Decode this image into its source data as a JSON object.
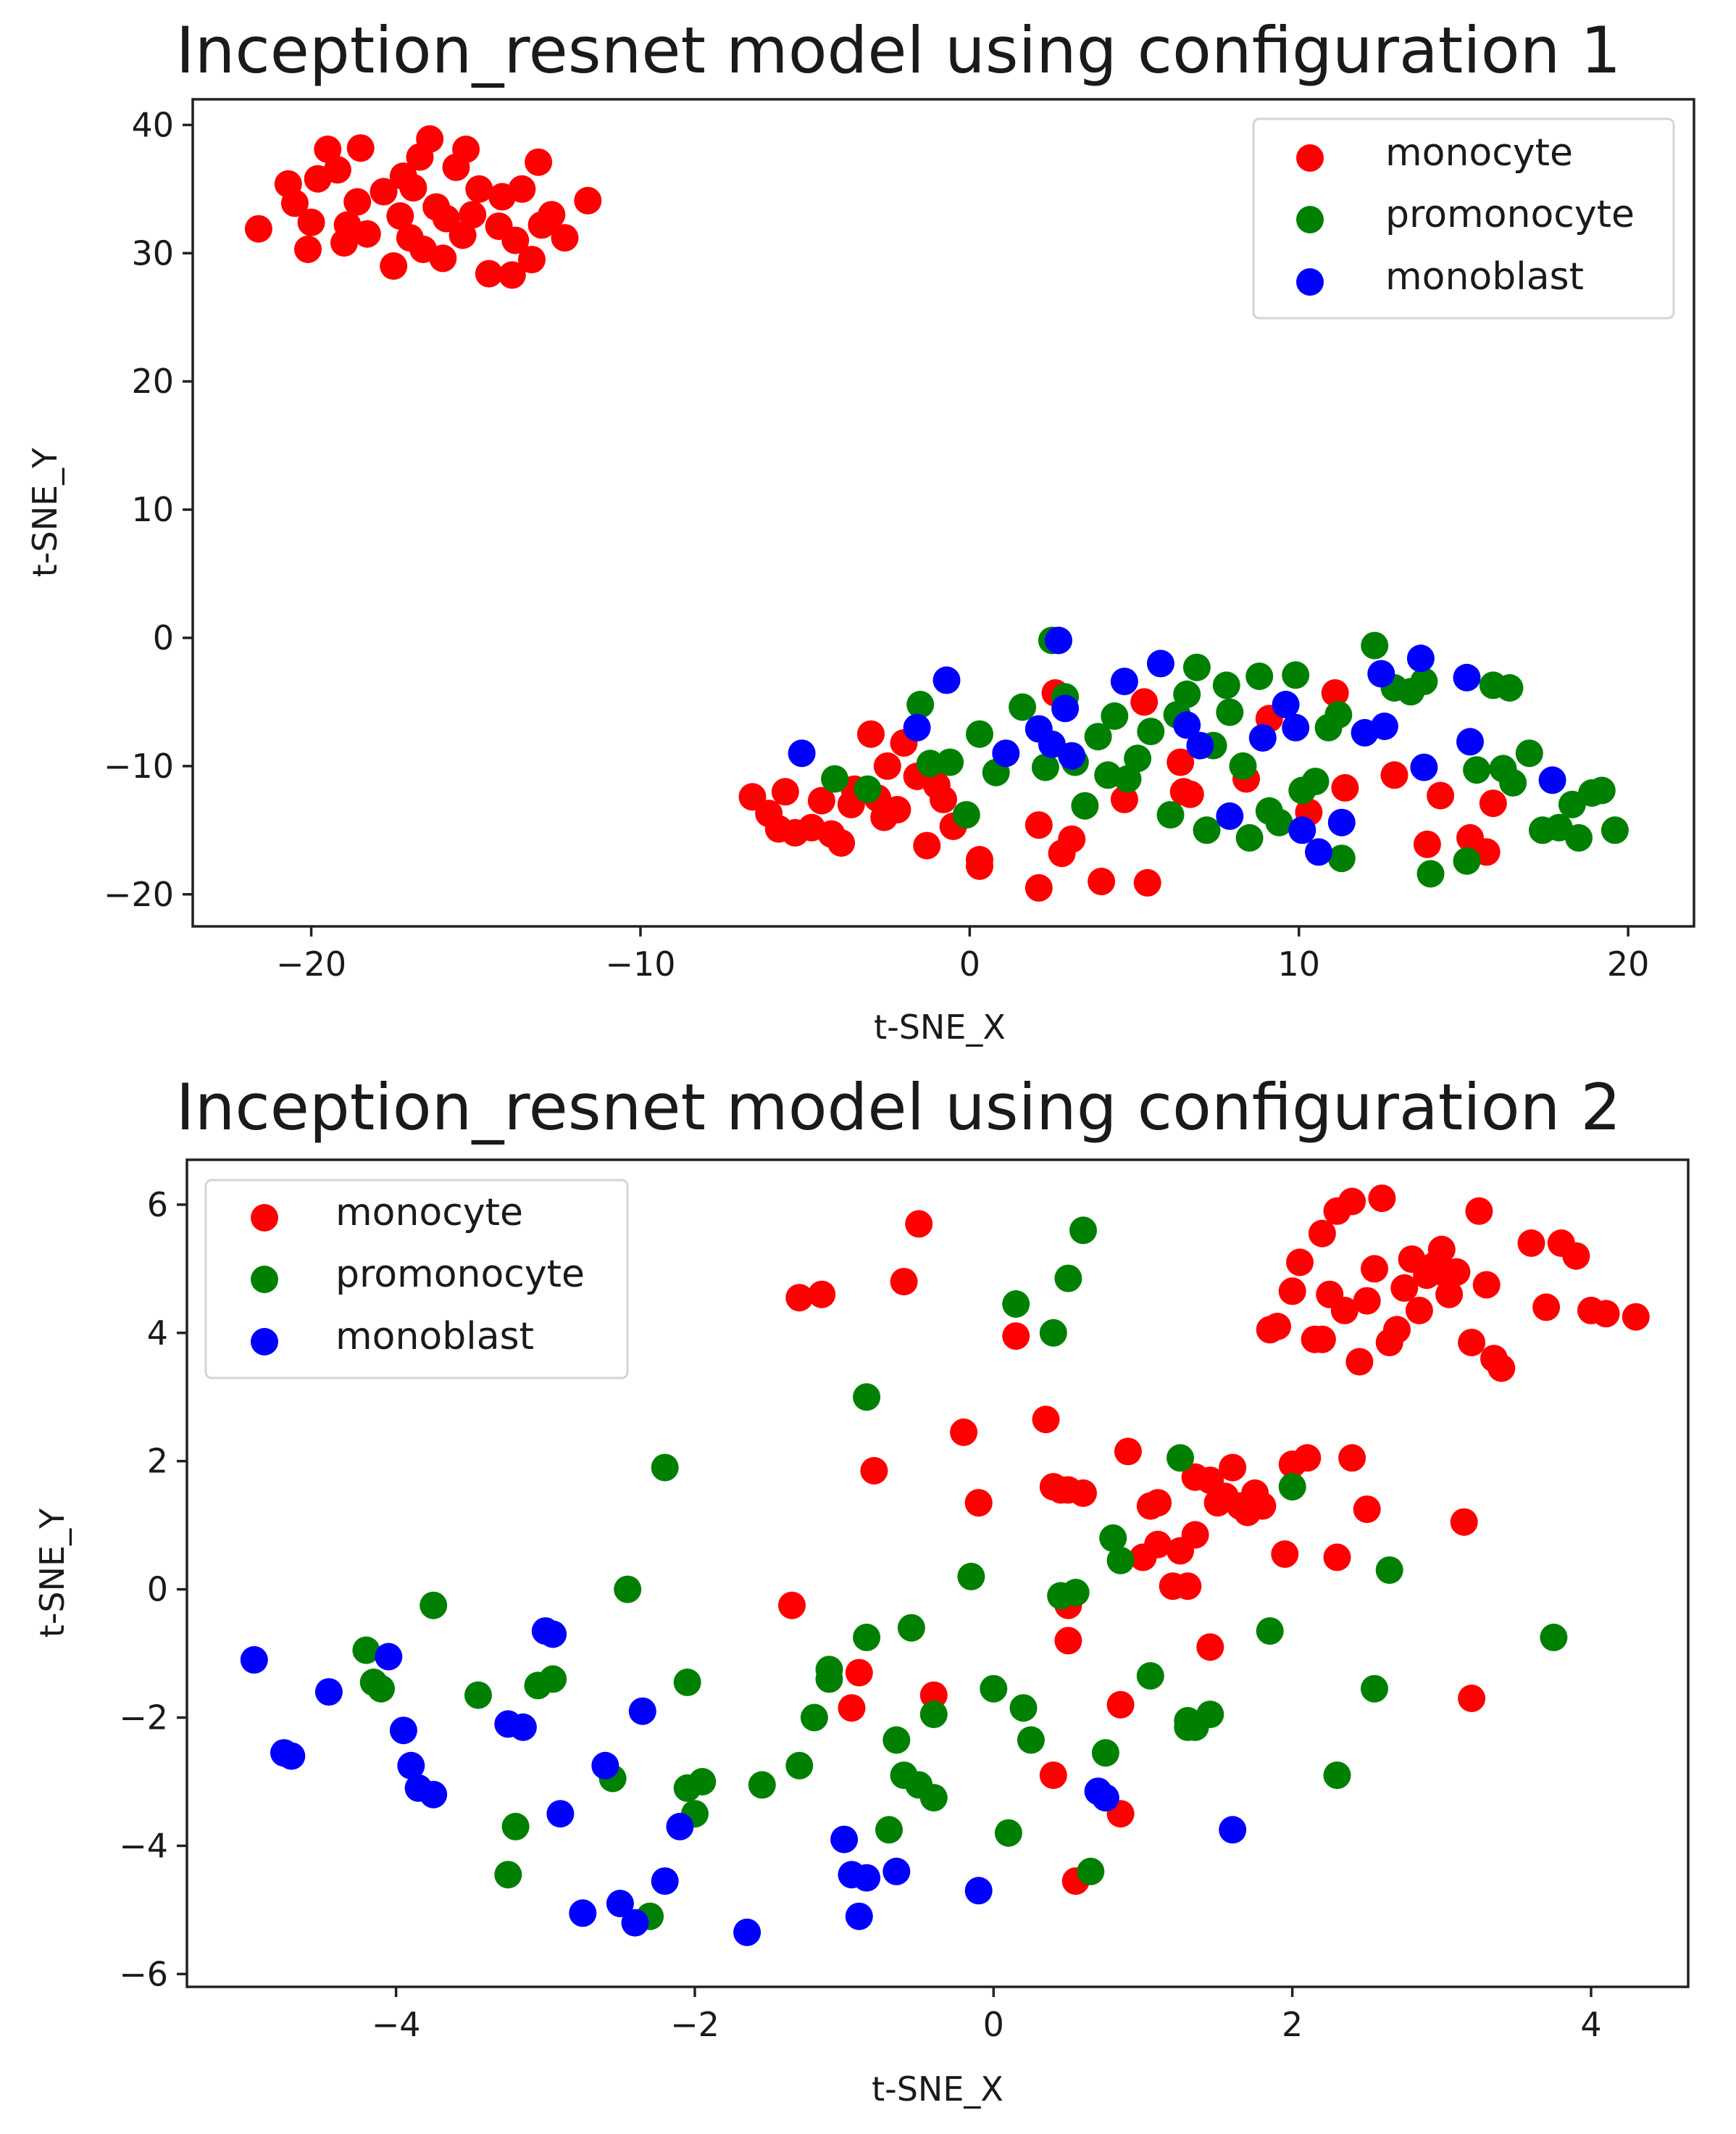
{
  "chart_data": [
    {
      "type": "scatter",
      "title": "Inception_resnet model using configuration 1",
      "xlabel": "t-SNE_X",
      "ylabel": "t-SNE_Y",
      "xlim": [
        -23.6,
        22
      ],
      "ylim": [
        -22.5,
        42
      ],
      "xticks": [
        -20,
        -10,
        0,
        10,
        20
      ],
      "yticks": [
        -20,
        -10,
        0,
        10,
        20,
        30,
        40
      ],
      "xtick_labels": [
        "−20",
        "−10",
        "0",
        "10",
        "20"
      ],
      "ytick_labels": [
        "−20",
        "−10",
        "0",
        "10",
        "20",
        "30",
        "40"
      ],
      "legend": "top-right",
      "series": [
        {
          "name": "monocyte",
          "color": "#ff0000",
          "x": [
            -21.6,
            -20.5,
            -20.7,
            -20.1,
            -20.0,
            -19.8,
            -19.5,
            -19.2,
            -19.0,
            -18.9,
            -18.6,
            -18.5,
            -18.3,
            -17.8,
            -17.5,
            -17.3,
            -17.2,
            -17.0,
            -16.9,
            -16.7,
            -16.6,
            -16.4,
            -16.2,
            -16.0,
            -15.9,
            -15.6,
            -15.4,
            -15.3,
            -15.1,
            -14.9,
            -14.6,
            -14.3,
            -14.2,
            -13.9,
            -13.8,
            -13.6,
            -13.3,
            -13.1,
            -13.0,
            -12.7,
            -12.3,
            -11.6,
            -6.6,
            -6.1,
            -5.8,
            -5.6,
            -5.3,
            -4.8,
            -4.5,
            -4.2,
            -3.9,
            -3.6,
            -3.5,
            -3.0,
            -2.8,
            -2.6,
            -2.5,
            -2.2,
            -2.0,
            -1.6,
            -1.3,
            -1.0,
            -0.8,
            -0.5,
            0.3,
            0.3,
            2.1,
            2.1,
            2.6,
            2.8,
            3.1,
            4.0,
            4.7,
            5.3,
            5.4,
            6.4,
            6.5,
            6.7,
            8.4,
            9.1,
            10.3,
            11.1,
            11.4,
            12.9,
            13.9,
            14.3,
            15.2,
            15.9,
            15.7
          ],
          "y": [
            31.9,
            33.9,
            35.4,
            30.3,
            32.4,
            35.8,
            38.1,
            36.5,
            30.8,
            32.2,
            34.0,
            38.2,
            31.5,
            34.8,
            29.0,
            32.9,
            36.0,
            31.2,
            35.1,
            37.5,
            30.3,
            38.9,
            33.6,
            29.6,
            32.7,
            36.7,
            31.4,
            38.1,
            33.0,
            35.0,
            28.4,
            32.1,
            34.4,
            28.3,
            31.0,
            35.0,
            29.5,
            37.1,
            32.2,
            33.0,
            31.2,
            34.1,
            -12.4,
            -13.7,
            -14.9,
            -12.0,
            -15.2,
            -14.8,
            -12.7,
            -15.3,
            -16.0,
            -13.0,
            -11.8,
            -7.5,
            -12.5,
            -14.0,
            -10.0,
            -13.4,
            -8.2,
            -10.8,
            -16.2,
            -11.5,
            -12.6,
            -14.7,
            -17.3,
            -17.8,
            -14.6,
            -19.5,
            -4.3,
            -16.8,
            -15.7,
            -19.0,
            -12.6,
            -5.0,
            -19.1,
            -9.7,
            -12.0,
            -12.2,
            -11.0,
            -6.3,
            -13.6,
            -4.3,
            -11.7,
            -10.7,
            -16.1,
            -12.3,
            -15.6,
            -12.9,
            -16.7
          ]
        },
        {
          "name": "promonocyte",
          "color": "#008000",
          "x": [
            -4.1,
            -3.1,
            -1.5,
            -1.2,
            -0.6,
            -0.1,
            0.3,
            0.8,
            1.6,
            2.3,
            2.5,
            2.9,
            3.2,
            3.5,
            3.9,
            4.2,
            4.4,
            4.8,
            5.1,
            5.5,
            6.1,
            6.3,
            6.6,
            6.9,
            7.2,
            7.4,
            7.8,
            7.9,
            8.3,
            8.5,
            8.8,
            9.1,
            9.4,
            9.9,
            10.1,
            10.5,
            10.9,
            11.2,
            11.3,
            12.3,
            12.9,
            13.4,
            13.8,
            14.0,
            15.1,
            15.4,
            15.9,
            16.2,
            16.4,
            16.5,
            17.0,
            17.4,
            17.9,
            18.3,
            18.5,
            18.9,
            19.2,
            19.6
          ],
          "y": [
            -11.0,
            -11.8,
            -5.2,
            -9.8,
            -9.7,
            -13.8,
            -7.5,
            -10.5,
            -5.4,
            -10.1,
            -0.2,
            -4.6,
            -9.7,
            -13.1,
            -7.7,
            -10.7,
            -6.1,
            -11.0,
            -9.4,
            -7.3,
            -13.8,
            -6.0,
            -4.4,
            -2.3,
            -15.0,
            -8.4,
            -3.7,
            -5.8,
            -10.0,
            -15.6,
            -3.0,
            -13.5,
            -14.4,
            -2.9,
            -11.9,
            -11.2,
            -7.0,
            -6.0,
            -17.2,
            -0.6,
            -3.9,
            -4.2,
            -3.4,
            -18.4,
            -17.4,
            -10.3,
            -3.7,
            -10.2,
            -3.9,
            -11.3,
            -9.0,
            -15.0,
            -14.8,
            -13.0,
            -15.6,
            -12.1,
            -11.9,
            -15.0
          ]
        },
        {
          "name": "monoblast",
          "color": "#0000ff",
          "x": [
            -5.1,
            -1.6,
            -0.7,
            1.1,
            2.1,
            2.5,
            2.7,
            2.9,
            3.1,
            4.7,
            5.8,
            6.6,
            7.0,
            7.9,
            8.9,
            9.6,
            9.9,
            10.1,
            10.6,
            11.3,
            12.0,
            12.5,
            12.6,
            13.7,
            13.8,
            15.1,
            15.2,
            17.7
          ],
          "y": [
            -9.0,
            -7.0,
            -3.3,
            -9.0,
            -7.1,
            -8.3,
            -0.2,
            -5.5,
            -9.2,
            -3.4,
            -2.0,
            -6.8,
            -8.4,
            -13.9,
            -7.8,
            -5.2,
            -7.0,
            -15.0,
            -16.7,
            -14.4,
            -7.4,
            -2.8,
            -6.9,
            -1.6,
            -10.1,
            -3.1,
            -8.1,
            -11.1
          ]
        }
      ]
    },
    {
      "type": "scatter",
      "title": "Inception_resnet model using configuration 2",
      "xlabel": "t-SNE_X",
      "ylabel": "t-SNE_Y",
      "xlim": [
        -5.4,
        4.65
      ],
      "ylim": [
        -6.2,
        6.7
      ],
      "xticks": [
        -4,
        -2,
        0,
        2,
        4
      ],
      "yticks": [
        -6,
        -4,
        -2,
        0,
        2,
        4,
        6
      ],
      "xtick_labels": [
        "−4",
        "−2",
        "0",
        "2",
        "4"
      ],
      "ytick_labels": [
        "−6",
        "−4",
        "−2",
        "0",
        "2",
        "4",
        "6"
      ],
      "legend": "top-left",
      "series": [
        {
          "name": "monocyte",
          "color": "#ff0000",
          "x": [
            -1.35,
            -1.15,
            -0.8,
            -0.6,
            -0.5,
            -0.4,
            -0.2,
            -1.3,
            -0.95,
            -0.9,
            -0.1,
            -0.1,
            0.15,
            0.35,
            0.4,
            0.45,
            0.5,
            0.5,
            0.55,
            0.6,
            0.85,
            0.9,
            1.0,
            1.05,
            1.1,
            1.2,
            1.25,
            1.3,
            1.35,
            1.45,
            1.5,
            1.55,
            1.6,
            1.65,
            1.7,
            1.75,
            1.8,
            1.85,
            1.9,
            1.95,
            2.0,
            2.0,
            2.05,
            2.1,
            2.15,
            2.2,
            2.25,
            2.3,
            2.35,
            2.4,
            2.45,
            2.5,
            2.55,
            2.6,
            2.65,
            2.7,
            2.75,
            2.8,
            2.85,
            2.9,
            2.95,
            3.0,
            3.05,
            3.1,
            3.15,
            3.2,
            3.25,
            3.3,
            3.35,
            3.4,
            3.6,
            3.7,
            3.8,
            3.9,
            4.0,
            4.1,
            4.3,
            2.2,
            2.4,
            2.5,
            2.3,
            3.0,
            3.2,
            0.85,
            0.4,
            0.5,
            1.45,
            1.1,
            1.35
          ],
          "y": [
            -0.25,
            4.6,
            1.85,
            4.8,
            5.7,
            -1.65,
            2.45,
            4.55,
            -1.85,
            -1.3,
            1.35,
            1.35,
            3.95,
            2.65,
            -2.9,
            1.55,
            -0.25,
            -0.8,
            -4.55,
            1.5,
            -3.5,
            2.15,
            0.5,
            1.3,
            1.35,
            0.05,
            0.6,
            0.05,
            0.85,
            1.7,
            1.35,
            1.45,
            1.9,
            1.3,
            1.2,
            1.5,
            1.3,
            4.05,
            4.1,
            0.55,
            4.65,
            1.95,
            5.1,
            2.05,
            3.9,
            5.55,
            4.6,
            5.9,
            4.35,
            6.05,
            3.55,
            4.5,
            5.0,
            6.1,
            3.85,
            4.05,
            4.7,
            5.15,
            4.35,
            4.9,
            5.05,
            5.3,
            4.6,
            4.95,
            1.05,
            3.85,
            5.9,
            4.75,
            3.6,
            3.45,
            5.4,
            4.4,
            5.4,
            5.2,
            4.35,
            4.3,
            4.25,
            3.9,
            2.05,
            1.25,
            0.5,
            4.95,
            -1.7,
            -1.8,
            1.6,
            1.55,
            -0.9,
            0.7,
            1.75
          ],
          "note": "monocyte cluster mostly in upper right"
        },
        {
          "name": "promonocyte",
          "color": "#008000",
          "x": [
            -4.2,
            -4.15,
            -4.1,
            -3.75,
            -3.45,
            -3.2,
            -3.25,
            -3.05,
            -2.95,
            -2.55,
            -2.45,
            -2.3,
            -2.2,
            -2.05,
            -2.05,
            -2.0,
            -1.95,
            -1.55,
            -1.3,
            -1.2,
            -1.1,
            -1.1,
            -0.85,
            -0.85,
            -0.7,
            -0.65,
            -0.6,
            -0.55,
            -0.5,
            -0.4,
            -0.4,
            -0.15,
            0.0,
            0.1,
            0.15,
            0.2,
            0.25,
            0.4,
            0.45,
            0.5,
            0.55,
            0.6,
            0.65,
            0.75,
            0.8,
            0.85,
            1.05,
            1.25,
            1.3,
            1.35,
            1.45,
            1.85,
            2.0,
            2.3,
            2.55,
            2.65,
            3.75,
            1.3
          ],
          "y": [
            -0.95,
            -1.45,
            -1.55,
            -0.25,
            -1.65,
            -3.7,
            -4.45,
            -1.5,
            -1.4,
            -2.95,
            0.0,
            -5.1,
            1.9,
            -1.45,
            -3.1,
            -3.5,
            -3.0,
            -3.05,
            -2.75,
            -2.0,
            -1.25,
            -1.4,
            -0.75,
            3.0,
            -3.75,
            -2.35,
            -2.9,
            -0.6,
            -3.05,
            -1.95,
            -3.25,
            0.2,
            -1.55,
            -3.8,
            4.45,
            -1.85,
            -2.35,
            4.0,
            -0.1,
            4.85,
            -0.05,
            5.6,
            -4.4,
            -2.55,
            0.8,
            0.45,
            -1.35,
            2.05,
            -2.05,
            -2.15,
            -1.95,
            -0.65,
            1.6,
            -2.9,
            -1.55,
            0.3,
            -0.75,
            -2.15
          ]
        },
        {
          "name": "monoblast",
          "color": "#0000ff",
          "x": [
            -4.95,
            -4.75,
            -4.7,
            -4.45,
            -4.05,
            -3.95,
            -3.9,
            -3.85,
            -3.75,
            -3.25,
            -3.15,
            -3.0,
            -2.95,
            -2.9,
            -2.75,
            -2.6,
            -2.5,
            -2.4,
            -2.35,
            -2.2,
            -2.1,
            -1.65,
            -1.0,
            -0.95,
            -0.9,
            -0.85,
            -0.65,
            -0.1,
            0.7,
            0.75,
            1.6
          ],
          "y": [
            -1.1,
            -2.55,
            -2.6,
            -1.6,
            -1.05,
            -2.2,
            -2.75,
            -3.1,
            -3.2,
            -2.1,
            -2.15,
            -0.65,
            -0.7,
            -3.5,
            -5.05,
            -2.75,
            -4.9,
            -5.2,
            -1.9,
            -4.55,
            -3.7,
            -5.35,
            -3.9,
            -4.45,
            -5.1,
            -4.5,
            -4.4,
            -4.7,
            -3.15,
            -3.25,
            -3.75
          ]
        }
      ]
    }
  ]
}
